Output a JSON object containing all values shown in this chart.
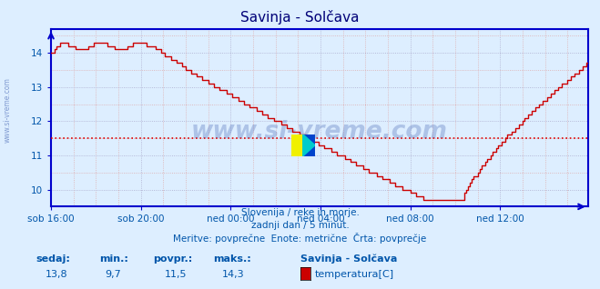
{
  "title": "Savinja - Solčava",
  "bg_color": "#ddeeff",
  "plot_bg_color": "#ddeeff",
  "line_color": "#cc0000",
  "grid_color_minor": "#ddaaaa",
  "grid_color_major": "#aaaacc",
  "axis_color": "#0000cc",
  "text_color": "#0055aa",
  "avg_line_color": "#dd0000",
  "avg_value": 11.5,
  "y_min": 9.5,
  "y_max": 14.7,
  "yticks": [
    10,
    11,
    12,
    13,
    14
  ],
  "x_tick_positions": [
    0,
    48,
    96,
    144,
    192,
    240
  ],
  "x_labels": [
    "sob 16:00",
    "sob 20:00",
    "ned 00:00",
    "ned 04:00",
    "ned 08:00",
    "ned 12:00"
  ],
  "n_points": 288,
  "footer_line1": "Slovenija / reke in morje.",
  "footer_line2": "zadnji dan / 5 minut.",
  "footer_line3": "Meritve: povprečne  Enote: metrične  Črta: povprečje",
  "legend_station": "Savinja - Solčava",
  "legend_param": "temperatura[C]",
  "stat_sedaj_label": "sedaj:",
  "stat_min_label": "min.:",
  "stat_povpr_label": "povpr.:",
  "stat_maks_label": "maks.:",
  "stat_sedaj": "13,8",
  "stat_min": "9,7",
  "stat_povpr": "11,5",
  "stat_maks": "14,3",
  "watermark": "www.si-vreme.com",
  "left_label": "www.si-vreme.com",
  "legend_color": "#cc0000"
}
